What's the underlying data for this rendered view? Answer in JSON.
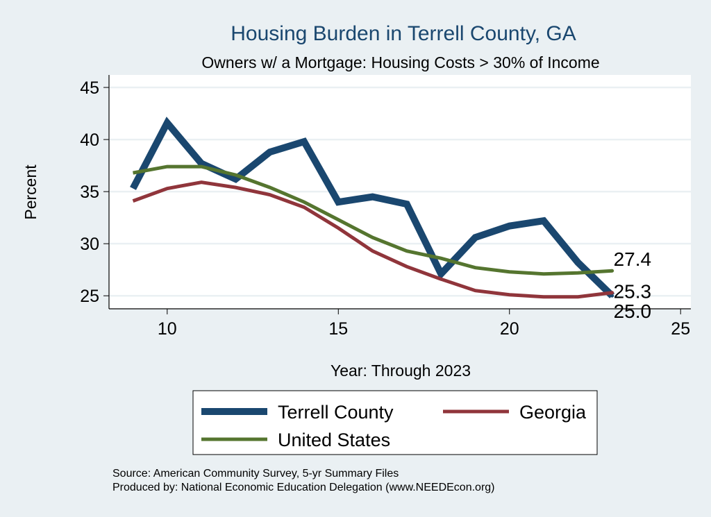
{
  "chart_data": {
    "type": "line",
    "title": "Housing Burden in Terrell County, GA",
    "subtitle": "Owners w/ a Mortgage: Housing Costs > 30% of Income",
    "xlabel": "Year: Through 2023",
    "ylabel": "Percent",
    "xlim": [
      8.3,
      25.3
    ],
    "ylim": [
      23.75,
      46.2
    ],
    "xticks": [
      "10",
      "15",
      "20",
      "25"
    ],
    "yticks": [
      "25",
      "30",
      "35",
      "40",
      "45"
    ],
    "grid": true,
    "legend_position": "bottom",
    "x": [
      9,
      10,
      11,
      12,
      13,
      14,
      15,
      16,
      17,
      18,
      19,
      20,
      21,
      22,
      23
    ],
    "series": [
      {
        "name": "Terrell County",
        "color": "#1a476f",
        "values": [
          35.3,
          41.6,
          37.7,
          36.2,
          38.8,
          39.8,
          34.0,
          34.5,
          33.8,
          27.1,
          30.6,
          31.7,
          32.2,
          28.2,
          25.0
        ],
        "end_label": "25.0"
      },
      {
        "name": "Georgia",
        "color": "#90353b",
        "values": [
          34.1,
          35.3,
          35.9,
          35.4,
          34.7,
          33.5,
          31.5,
          29.3,
          27.8,
          26.6,
          25.5,
          25.1,
          24.9,
          24.9,
          25.3
        ],
        "end_label": "25.3"
      },
      {
        "name": "United States",
        "color": "#55752f",
        "values": [
          36.8,
          37.4,
          37.4,
          36.6,
          35.4,
          34.0,
          32.3,
          30.6,
          29.3,
          28.6,
          27.7,
          27.3,
          27.1,
          27.2,
          27.4
        ],
        "end_label": "27.4"
      }
    ],
    "notes": [
      "Source: American Community Survey, 5-yr Summary Files",
      "Produced by: National Economic Education Delegation (www.NEEDEcon.org)"
    ]
  }
}
